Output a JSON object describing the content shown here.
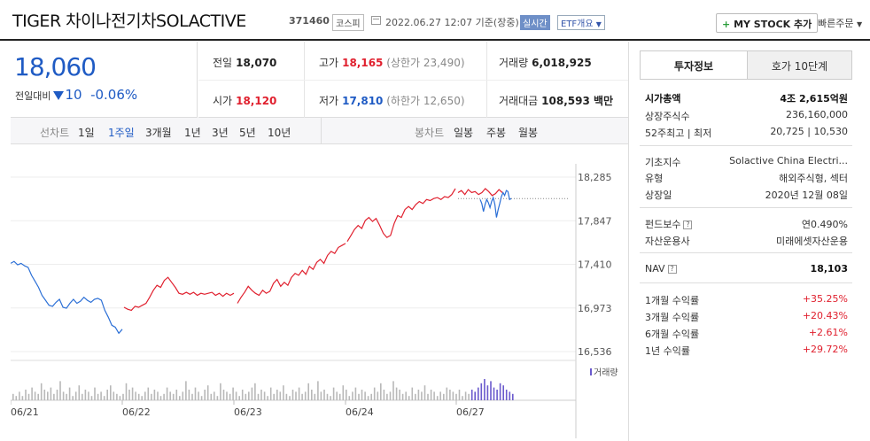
{
  "header": {
    "title": "TIGER 차이나전기차SOLACTIVE",
    "code": "371460",
    "market": "코스피",
    "datetime": "2022.06.27 12:07 기준(장중)",
    "realtime": "실시간",
    "etf_overview": "ETF개요",
    "my_stock": "MY STOCK 추가",
    "my_stock_plus": "+",
    "quick_order": "빠른주문"
  },
  "price": {
    "current": "18,060",
    "prev_label": "전일대비",
    "change": "10",
    "change_pct": "-0.06%"
  },
  "summary": {
    "prev_close_label": "전일",
    "prev_close": "18,070",
    "high_label": "고가",
    "high": "18,165",
    "upper_limit": "(상한가 23,490)",
    "volume_label": "거래량",
    "volume": "6,018,925",
    "open_label": "시가",
    "open": "18,120",
    "low_label": "저가",
    "low": "17,810",
    "lower_limit": "(하한가 12,650)",
    "amount_label": "거래대금",
    "amount": "108,593 백만"
  },
  "line_tabs": {
    "label": "선차트",
    "items": [
      "1일",
      "1주일",
      "3개월",
      "1년",
      "3년",
      "5년",
      "10년"
    ],
    "active": "1주일"
  },
  "candle_tabs": {
    "label": "봉차트",
    "items": [
      "일봉",
      "주봉",
      "월봉"
    ]
  },
  "chart_data": {
    "type": "line",
    "y_ticks": [
      "18,285",
      "17,847",
      "17,410",
      "16,973",
      "16,536"
    ],
    "ylim": [
      16536,
      18285
    ],
    "x_labels": [
      "06/21",
      "06/22",
      "06/23",
      "06/24",
      "06/27"
    ],
    "prev_close": 18070,
    "volume_label": "거래량",
    "series": [
      {
        "day": "06/21",
        "color": "#2b6fd6",
        "values": [
          17420,
          17440,
          17405,
          17420,
          17395,
          17380,
          17300,
          17240,
          17180,
          17100,
          17050,
          17000,
          16990,
          17030,
          17060,
          16980,
          16970,
          17020,
          17060,
          17020,
          17040,
          17080,
          17050,
          17030,
          17060,
          17070,
          17050,
          16950,
          16880,
          16800,
          16780,
          16720,
          16760
        ]
      },
      {
        "day": "06/22",
        "color": "#e0202e",
        "values": [
          16980,
          16960,
          16950,
          16990,
          16980,
          17000,
          17020,
          17080,
          17150,
          17200,
          17180,
          17250,
          17280,
          17230,
          17180,
          17120,
          17110,
          17130,
          17110,
          17130,
          17100,
          17120,
          17110,
          17120,
          17130,
          17100,
          17120,
          17090,
          17120,
          17100,
          17120
        ]
      },
      {
        "day": "06/23",
        "color": "#e0202e",
        "values": [
          17020,
          17080,
          17130,
          17190,
          17150,
          17120,
          17100,
          17150,
          17120,
          17140,
          17220,
          17260,
          17190,
          17230,
          17200,
          17280,
          17320,
          17300,
          17350,
          17310,
          17390,
          17360,
          17430,
          17460,
          17420,
          17500,
          17540,
          17520,
          17580,
          17600,
          17620
        ]
      },
      {
        "day": "06/24",
        "color": "#e0202e",
        "values": [
          17640,
          17700,
          17760,
          17800,
          17770,
          17850,
          17880,
          17840,
          17870,
          17800,
          17720,
          17680,
          17700,
          17820,
          17900,
          17880,
          17960,
          17990,
          17960,
          18010,
          18040,
          18020,
          18060,
          18050,
          18070,
          18080,
          18060,
          18090,
          18080,
          18110,
          18170
        ]
      },
      {
        "day": "06/27",
        "color": "#e0202e",
        "values": [
          18130,
          18150,
          18110,
          18160,
          18130,
          18140,
          18110,
          18130,
          18170,
          18140,
          18100,
          18120,
          18160,
          18130
        ]
      },
      {
        "day": "06/27b",
        "color": "#2b6fd6",
        "values": [
          18060,
          18020,
          17940,
          18010,
          18060,
          18030,
          17980,
          18040,
          18080,
          18010,
          17880,
          17960,
          18020,
          18090,
          18130,
          18100,
          18150,
          18140,
          18060,
          18070
        ]
      }
    ],
    "volume": [
      3,
      2,
      4,
      2,
      5,
      3,
      6,
      4,
      3,
      8,
      5,
      4,
      6,
      3,
      5,
      9,
      4,
      3,
      6,
      2,
      4,
      7,
      3,
      5,
      4,
      2,
      6,
      3,
      4,
      2,
      5,
      7,
      4,
      3,
      2,
      3,
      8,
      5,
      6,
      4,
      3,
      2,
      4,
      6,
      3,
      5,
      4,
      2,
      3,
      6,
      4,
      3,
      5,
      2,
      4,
      9,
      5,
      3,
      6,
      4,
      2,
      5,
      7,
      3,
      4,
      2,
      8,
      5,
      4,
      3,
      6,
      4,
      2,
      5,
      3,
      4,
      6,
      8,
      3,
      5,
      4,
      2,
      6,
      3,
      5,
      4,
      7,
      3,
      2,
      5,
      4,
      6,
      3,
      4,
      8,
      5,
      3,
      9,
      4,
      5,
      3,
      2,
      6,
      4,
      3,
      7,
      5,
      2,
      4,
      6,
      3,
      5,
      4,
      2,
      3,
      6,
      4,
      8,
      5,
      3,
      4,
      9,
      6,
      5,
      3,
      4,
      2,
      6,
      3,
      5,
      4,
      7,
      3,
      5,
      4,
      2,
      4,
      3,
      6,
      5,
      4,
      3,
      5,
      2,
      4,
      3,
      5,
      4,
      6,
      8,
      10,
      7,
      9,
      6,
      5,
      8,
      7,
      5,
      4,
      3
    ]
  },
  "right": {
    "tab_invest": "투자정보",
    "tab_quote": "호가 10단계",
    "market_cap_label": "시가총액",
    "market_cap": "4조 2,615억원",
    "shares_label": "상장주식수",
    "shares": "236,160,000",
    "w52_label": "52주최고 | 최저",
    "w52": "20,725 | 10,530",
    "index_label": "기초지수",
    "index": "Solactive China Electri...",
    "type_label": "유형",
    "type": "해외주식형, 섹터",
    "list_date_label": "상장일",
    "list_date": "2020년 12월 08일",
    "fee_label": "펀드보수",
    "fee": "연0.490%",
    "manager_label": "자산운용사",
    "manager": "미래에셋자산운용",
    "nav_label": "NAV",
    "nav": "18,103",
    "r1m_label": "1개월 수익률",
    "r1m": "+35.25%",
    "r3m_label": "3개월 수익률",
    "r3m": "+20.43%",
    "r6m_label": "6개월 수익률",
    "r6m": "+2.61%",
    "r1y_label": "1년 수익률",
    "r1y": "+29.72%"
  }
}
